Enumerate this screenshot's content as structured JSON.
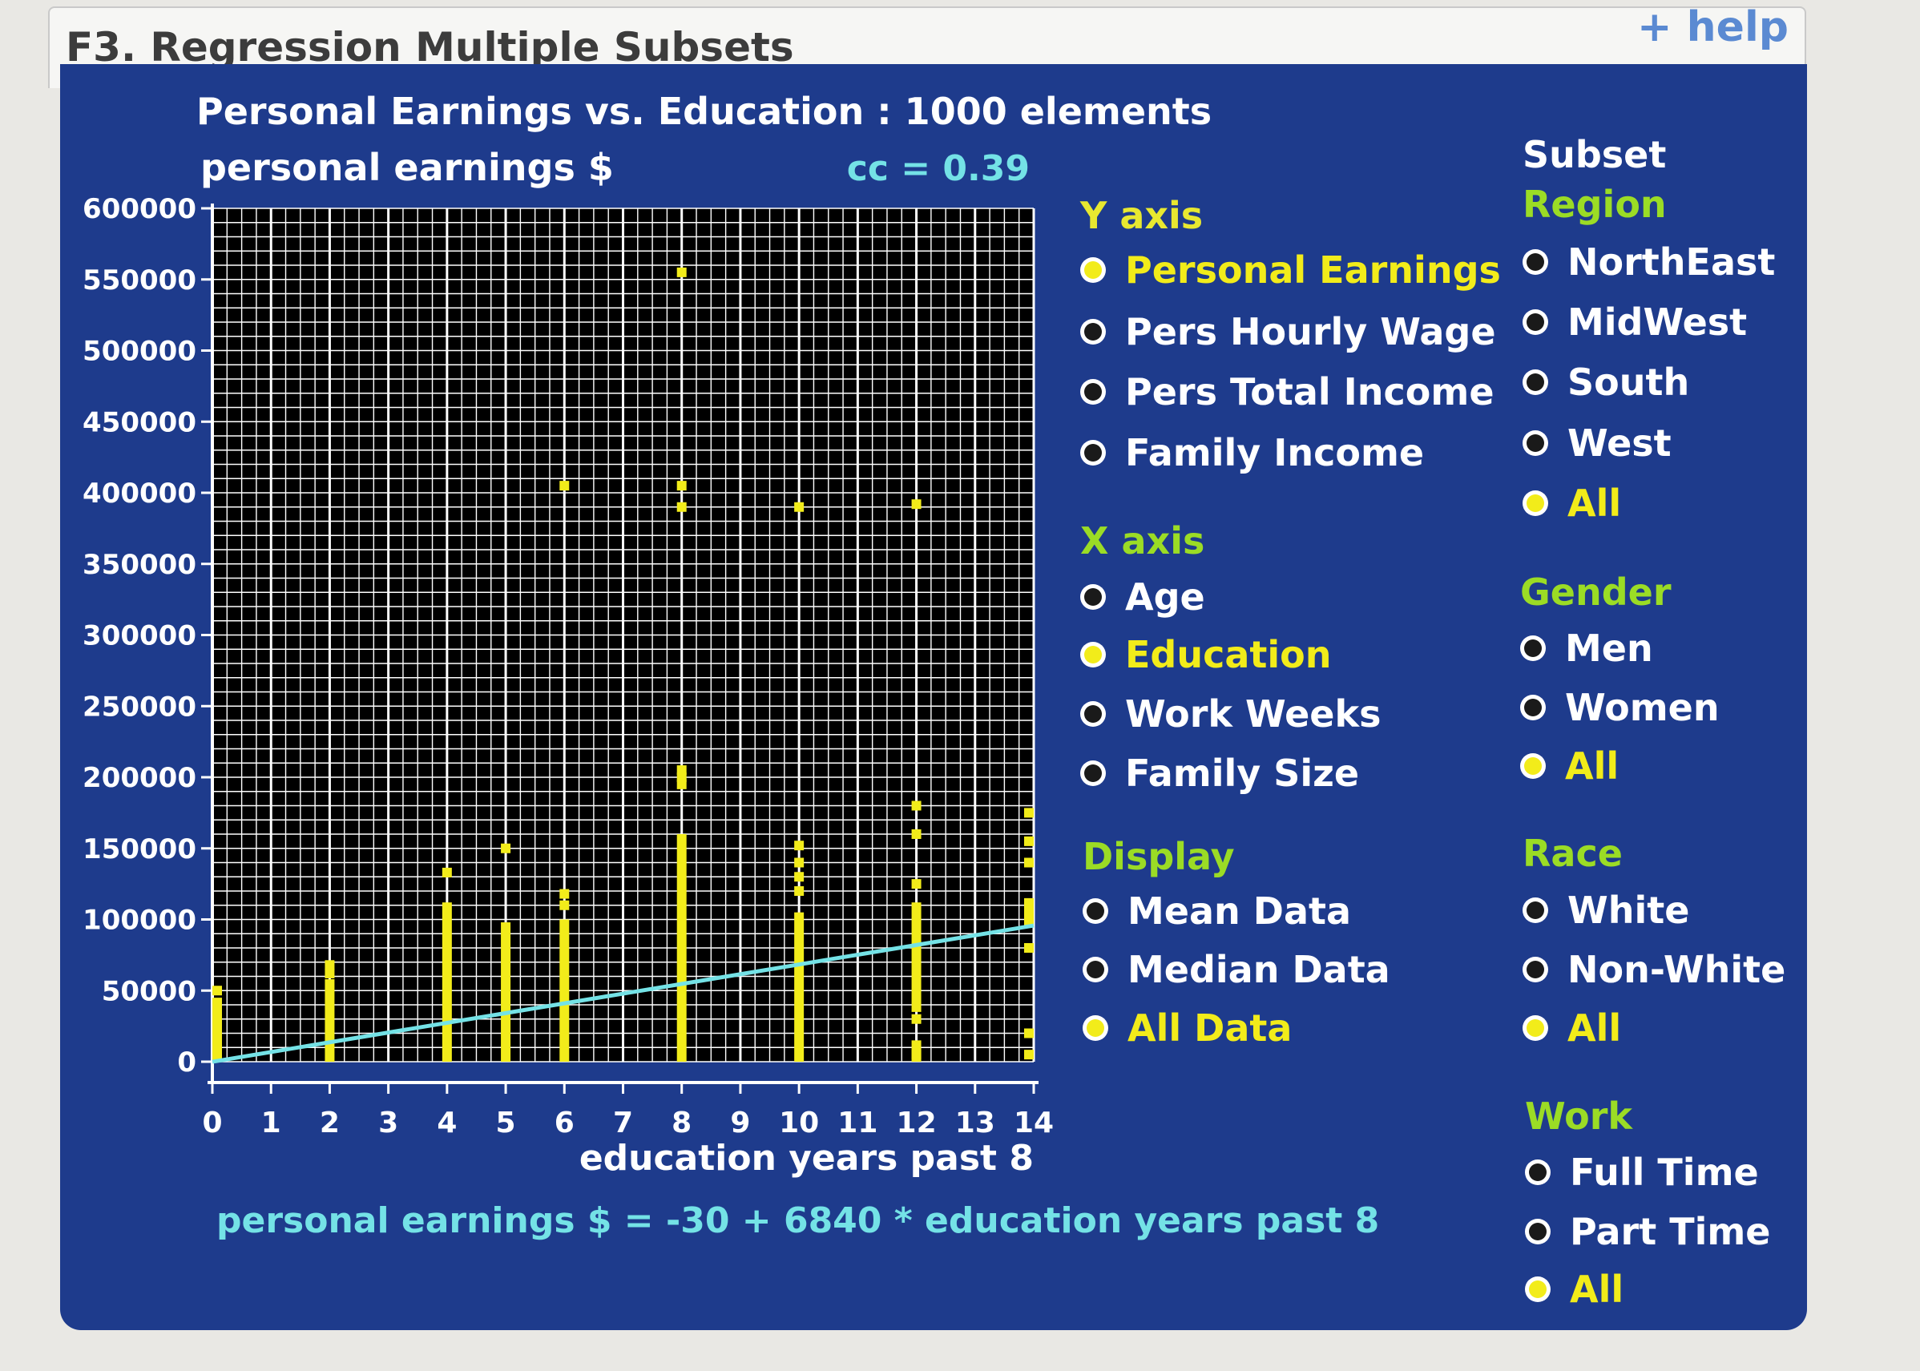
{
  "app": {
    "title": "F3. Regression Multiple Subsets",
    "help_label": "+ help"
  },
  "plot": {
    "title": "Personal Earnings vs. Education : 1000 elements",
    "y_label": "personal earnings $",
    "cc_label": "cc = 0.39",
    "x_label": "education years past 8",
    "equation": "personal earnings $ = -30 + 6840 * education years past 8"
  },
  "controls": {
    "y_axis": {
      "heading": "Y axis",
      "options": [
        {
          "label": "Personal Earnings",
          "selected": true
        },
        {
          "label": "Pers Hourly Wage",
          "selected": false
        },
        {
          "label": "Pers Total Income",
          "selected": false
        },
        {
          "label": "Family Income",
          "selected": false
        }
      ]
    },
    "x_axis": {
      "heading": "X axis",
      "options": [
        {
          "label": "Age",
          "selected": false
        },
        {
          "label": "Education",
          "selected": true
        },
        {
          "label": "Work Weeks",
          "selected": false
        },
        {
          "label": "Family Size",
          "selected": false
        }
      ]
    },
    "display": {
      "heading": "Display",
      "options": [
        {
          "label": "Mean Data",
          "selected": false
        },
        {
          "label": "Median Data",
          "selected": false
        },
        {
          "label": "All Data",
          "selected": true
        }
      ]
    },
    "subset_heading": "Subset",
    "region": {
      "heading": "Region",
      "options": [
        {
          "label": "NorthEast",
          "selected": false
        },
        {
          "label": "MidWest",
          "selected": false
        },
        {
          "label": "South",
          "selected": false
        },
        {
          "label": "West",
          "selected": false
        },
        {
          "label": "All",
          "selected": true
        }
      ]
    },
    "gender": {
      "heading": "Gender",
      "options": [
        {
          "label": "Men",
          "selected": false
        },
        {
          "label": "Women",
          "selected": false
        },
        {
          "label": "All",
          "selected": true
        }
      ]
    },
    "race": {
      "heading": "Race",
      "options": [
        {
          "label": "White",
          "selected": false
        },
        {
          "label": "Non-White",
          "selected": false
        },
        {
          "label": "All",
          "selected": true
        }
      ]
    },
    "work": {
      "heading": "Work",
      "options": [
        {
          "label": "Full Time",
          "selected": false
        },
        {
          "label": "Part Time",
          "selected": false
        },
        {
          "label": "All",
          "selected": true
        }
      ]
    }
  },
  "colors": {
    "panel": "#1e3b8c",
    "points": "#f2ec1a",
    "regression": "#74e2e6",
    "heading_green": "#9bdc25",
    "grid": "#ffffff"
  },
  "chart_data": {
    "type": "scatter",
    "title": "Personal Earnings vs. Education : 1000 elements",
    "xlabel": "education years past 8",
    "ylabel": "personal earnings $",
    "xlim": [
      0,
      14
    ],
    "ylim": [
      0,
      600000
    ],
    "x_ticks": [
      0,
      1,
      2,
      3,
      4,
      5,
      6,
      7,
      8,
      9,
      10,
      11,
      12,
      13,
      14
    ],
    "y_ticks": [
      0,
      50000,
      100000,
      150000,
      200000,
      250000,
      300000,
      350000,
      400000,
      450000,
      500000,
      550000,
      600000
    ],
    "grid": true,
    "correlation": 0.39,
    "regression": {
      "intercept": -30,
      "slope": 6840
    },
    "columns": [
      {
        "x": 0,
        "segments": [
          [
            0,
            45000
          ]
        ],
        "points": [
          50000
        ]
      },
      {
        "x": 2,
        "segments": [
          [
            0,
            58000
          ]
        ],
        "points": [
          62000,
          68000
        ]
      },
      {
        "x": 4,
        "segments": [
          [
            0,
            112000
          ]
        ],
        "points": [
          133000
        ]
      },
      {
        "x": 5,
        "segments": [
          [
            0,
            98000
          ]
        ],
        "points": [
          150000
        ]
      },
      {
        "x": 6,
        "segments": [
          [
            0,
            100000
          ]
        ],
        "points": [
          110000,
          118000,
          405000
        ]
      },
      {
        "x": 8,
        "segments": [
          [
            0,
            160000
          ]
        ],
        "points": [
          195000,
          200000,
          205000,
          390000,
          405000,
          555000
        ]
      },
      {
        "x": 10,
        "segments": [
          [
            0,
            105000
          ]
        ],
        "points": [
          120000,
          130000,
          140000,
          152000,
          390000
        ]
      },
      {
        "x": 12,
        "segments": [
          [
            0,
            15000
          ],
          [
            35000,
            112000
          ]
        ],
        "points": [
          5000,
          30000,
          125000,
          160000,
          180000,
          392000
        ]
      },
      {
        "x": 14,
        "segments": [
          [
            95000,
            115000
          ]
        ],
        "points": [
          5000,
          20000,
          80000,
          140000,
          155000,
          175000
        ]
      }
    ]
  }
}
